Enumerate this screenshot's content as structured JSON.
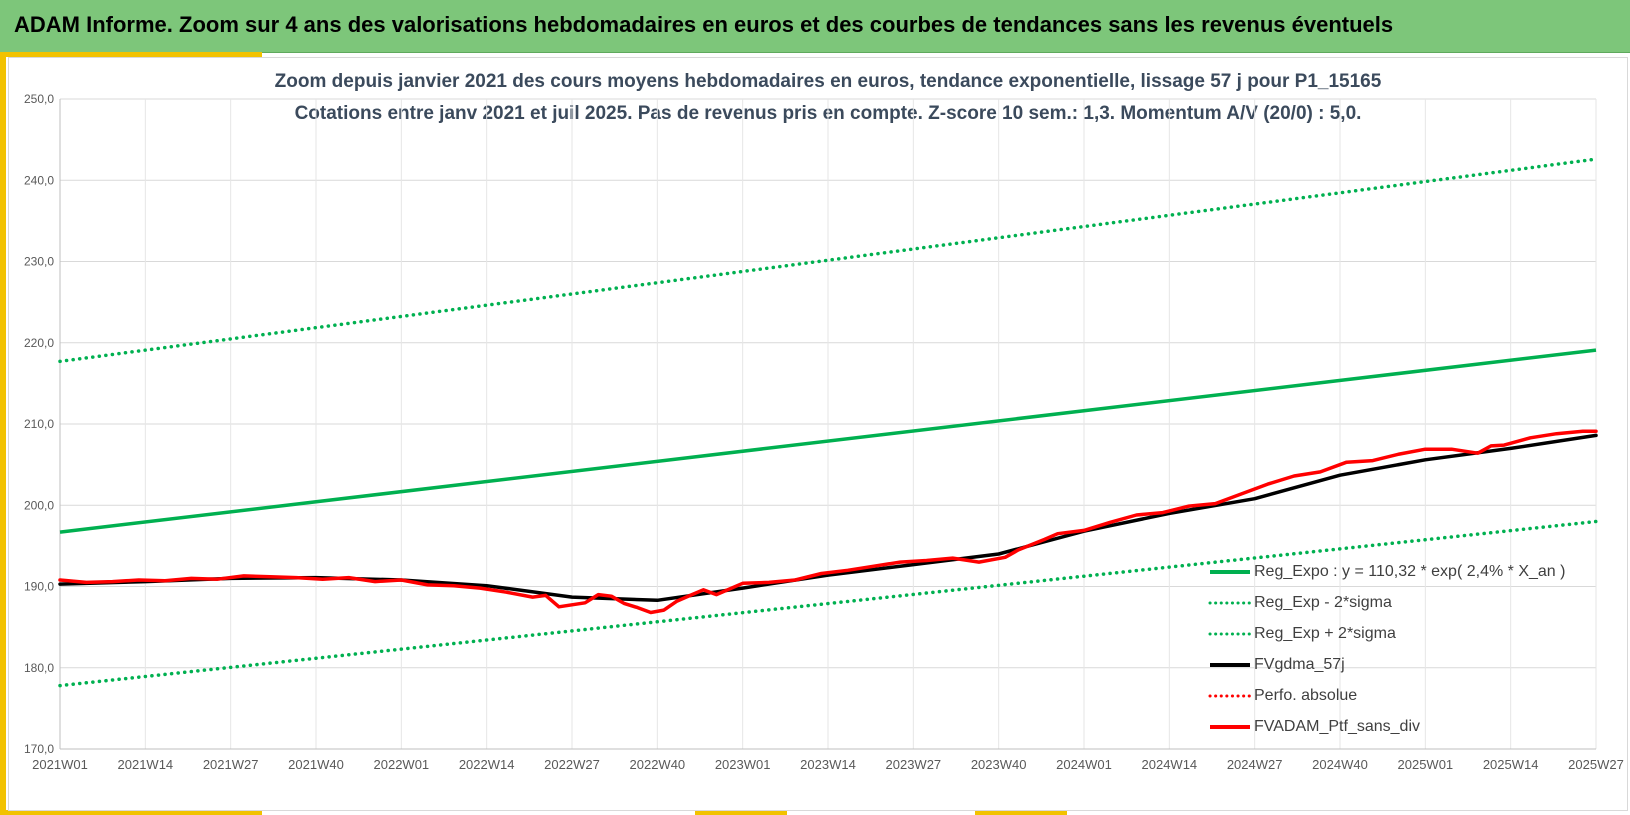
{
  "header": {
    "title": "ADAM Informe. Zoom sur 4 ans des valorisations hebdomadaires en euros et des courbes de tendances sans les revenus éventuels"
  },
  "colors": {
    "banner": "#7dc67a",
    "accent_yellow": "#f2c200",
    "trend_green": "#00b050",
    "smoothed_black": "#000000",
    "portfolio_red": "#ff0000"
  },
  "chart_data": {
    "type": "line",
    "title": "Zoom depuis janvier 2021 des cours moyens hebdomadaires  en euros, tendance exponentielle, lissage 57 j pour P1_15165",
    "subtitle": "Cotations entre janv 2021 et juil 2025. Pas de revenus pris en compte. Z-score 10 sem.: 1,3. Momentum A/V (20/0) : 5,0.",
    "x_ticks": [
      "2021W01",
      "2021W14",
      "2021W27",
      "2021W40",
      "2022W01",
      "2022W14",
      "2022W27",
      "2022W40",
      "2023W01",
      "2023W14",
      "2023W27",
      "2023W40",
      "2024W01",
      "2024W14",
      "2024W27",
      "2024W40",
      "2025W01",
      "2025W14",
      "2025W27"
    ],
    "y_ticks": [
      "170,0",
      "180,0",
      "190,0",
      "200,0",
      "210,0",
      "220,0",
      "230,0",
      "240,0",
      "250,0"
    ],
    "ylim": [
      170,
      250
    ],
    "x_range_weeks": [
      0,
      234
    ],
    "grid": true,
    "legend_position": "right",
    "series": [
      {
        "name": "Reg_Expo : y = 110,32 * exp( 2,4% *  X_an )",
        "style": "solid",
        "color": "#00b050",
        "x": [
          0,
          234
        ],
        "y": [
          196.7,
          219.1
        ]
      },
      {
        "name": "Reg_Exp - 2*sigma",
        "style": "dotted",
        "color": "#00b050",
        "x": [
          0,
          234
        ],
        "y": [
          177.8,
          198.0
        ]
      },
      {
        "name": "Reg_Exp + 2*sigma",
        "style": "dotted",
        "color": "#00b050",
        "x": [
          0,
          234
        ],
        "y": [
          217.7,
          242.6
        ]
      },
      {
        "name": "FVgdma_57j",
        "style": "solid",
        "color": "#000000",
        "x": [
          0,
          13,
          26,
          39,
          52,
          65,
          78,
          91,
          104,
          117,
          130,
          143,
          156,
          169,
          182,
          195,
          208,
          221,
          234
        ],
        "y": [
          190.3,
          190.6,
          191.0,
          191.1,
          190.8,
          190.1,
          188.7,
          188.3,
          189.8,
          191.4,
          192.7,
          194.0,
          196.8,
          199.0,
          200.8,
          203.7,
          205.6,
          207.0,
          208.6
        ]
      },
      {
        "name": "Perfo. absolue",
        "style": "dotted",
        "color": "#ff0000",
        "x": [],
        "y": []
      },
      {
        "name": "FVADAM_Ptf_sans_div",
        "style": "solid",
        "color": "#ff0000",
        "x": [
          0,
          4,
          8,
          12,
          16,
          20,
          24,
          28,
          32,
          36,
          40,
          44,
          48,
          52,
          56,
          60,
          64,
          68,
          72,
          74,
          76,
          80,
          82,
          84,
          86,
          88,
          90,
          92,
          94,
          96,
          98,
          100,
          104,
          108,
          112,
          116,
          120,
          124,
          128,
          132,
          136,
          140,
          144,
          146,
          150,
          152,
          156,
          160,
          164,
          168,
          172,
          176,
          180,
          184,
          188,
          192,
          196,
          200,
          204,
          208,
          212,
          216,
          218,
          220,
          224,
          228,
          232,
          234
        ],
        "y": [
          190.8,
          190.5,
          190.6,
          190.8,
          190.7,
          191.0,
          190.9,
          191.3,
          191.2,
          191.1,
          190.9,
          191.1,
          190.6,
          190.8,
          190.2,
          190.1,
          189.8,
          189.3,
          188.7,
          188.9,
          187.5,
          188.0,
          189.0,
          188.8,
          187.9,
          187.4,
          186.8,
          187.1,
          188.2,
          188.9,
          189.6,
          189.0,
          190.4,
          190.5,
          190.8,
          191.6,
          192.0,
          192.5,
          193.0,
          193.2,
          193.5,
          193.0,
          193.6,
          194.5,
          195.8,
          196.5,
          196.9,
          197.9,
          198.8,
          199.1,
          199.9,
          200.2,
          201.4,
          202.6,
          203.6,
          204.1,
          205.3,
          205.5,
          206.3,
          206.9,
          206.9,
          206.4,
          207.3,
          207.4,
          208.3,
          208.8,
          209.1,
          209.1
        ]
      }
    ]
  }
}
